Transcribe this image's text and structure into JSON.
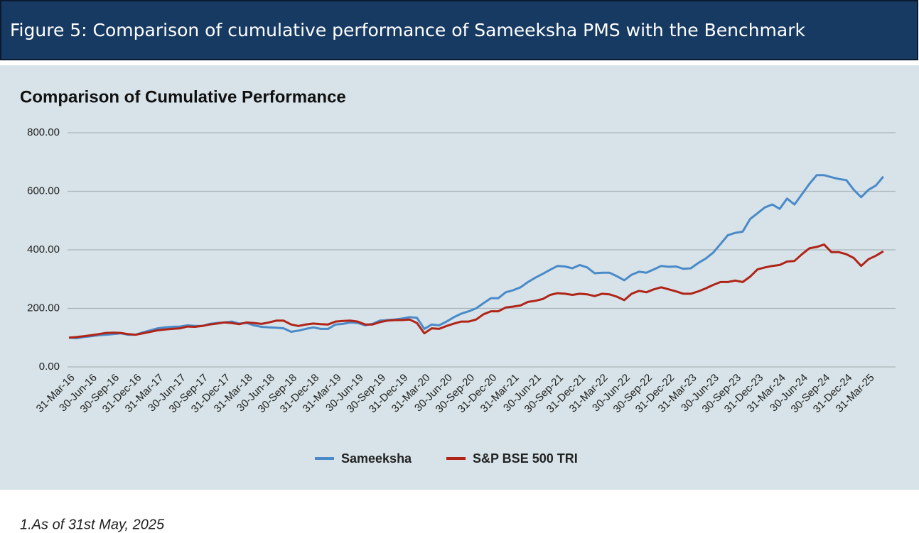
{
  "header": {
    "title": "Figure 5: Comparison of cumulative performance of Sameeksha PMS with the Benchmark"
  },
  "chart_data": {
    "type": "line",
    "title": "Comparison of  Cumulative Performance",
    "categories": [
      "31-Mar-16",
      null,
      null,
      "30-Jun-16",
      null,
      null,
      "30-Sep-16",
      null,
      null,
      "31-Dec-16",
      null,
      null,
      "31-Mar-17",
      null,
      null,
      "30-Jun-17",
      null,
      null,
      "30-Sep-17",
      null,
      null,
      "31-Dec-17",
      null,
      null,
      "31-Mar-18",
      null,
      null,
      "30-Jun-18",
      null,
      null,
      "30-Sep-18",
      null,
      null,
      "31-Dec-18",
      null,
      null,
      "31-Mar-19",
      null,
      null,
      "30-Jun-19",
      null,
      null,
      "30-Sep-19",
      null,
      null,
      "31-Dec-19",
      null,
      null,
      "31-Mar-20",
      null,
      null,
      "30-Jun-20",
      null,
      null,
      "30-Sep-20",
      null,
      null,
      "31-Dec-20",
      null,
      null,
      "31-Mar-21",
      null,
      null,
      "30-Jun-21",
      null,
      null,
      "30-Sep-21",
      null,
      null,
      "31-Dec-21",
      null,
      null,
      "31-Mar-22",
      null,
      null,
      "30-Jun-22",
      null,
      null,
      "30-Sep-22",
      null,
      null,
      "31-Dec-22",
      null,
      null,
      "31-Mar-23",
      null,
      null,
      "30-Jun-23",
      null,
      null,
      "30-Sep-23",
      null,
      null,
      "31-Dec-23",
      null,
      null,
      "31-Mar-24",
      null,
      null,
      "30-Jun-24",
      null,
      null,
      "30-Sep-24",
      null,
      null,
      "31-Dec-24",
      null,
      null,
      "31-Mar-25",
      null,
      null
    ],
    "series": [
      {
        "name": "Sameeksha",
        "color": "#4a8ac9",
        "values": [
          100,
          98,
          102,
          105,
          108,
          110,
          112,
          115,
          110,
          110,
          118,
          125,
          132,
          135,
          137,
          138,
          142,
          140,
          140,
          147,
          150,
          152,
          155,
          148,
          150,
          142,
          137,
          135,
          134,
          132,
          120,
          124,
          130,
          135,
          130,
          130,
          145,
          147,
          152,
          150,
          142,
          147,
          158,
          160,
          162,
          165,
          170,
          168,
          130,
          145,
          142,
          155,
          170,
          182,
          190,
          200,
          218,
          235,
          235,
          255,
          262,
          272,
          290,
          305,
          318,
          332,
          345,
          343,
          337,
          348,
          340,
          320,
          322,
          322,
          310,
          296,
          315,
          325,
          322,
          333,
          345,
          342,
          343,
          335,
          337,
          355,
          370,
          390,
          420,
          450,
          458,
          462,
          505,
          525,
          545,
          555,
          540,
          575,
          555,
          590,
          625,
          655,
          655,
          648,
          642,
          638,
          605,
          580,
          605,
          620,
          650
        ]
      },
      {
        "name": "S&P BSE 500 TRI",
        "color": "#b02418",
        "values": [
          100,
          102,
          105,
          108,
          112,
          116,
          117,
          116,
          112,
          110,
          115,
          120,
          125,
          128,
          130,
          132,
          138,
          137,
          140,
          145,
          148,
          152,
          150,
          146,
          152,
          150,
          147,
          152,
          158,
          158,
          145,
          140,
          145,
          148,
          146,
          145,
          155,
          157,
          158,
          155,
          145,
          145,
          153,
          158,
          160,
          160,
          162,
          150,
          115,
          132,
          130,
          140,
          148,
          155,
          155,
          162,
          180,
          190,
          190,
          203,
          206,
          210,
          222,
          226,
          232,
          246,
          252,
          250,
          246,
          250,
          248,
          242,
          250,
          248,
          240,
          228,
          250,
          260,
          255,
          265,
          272,
          265,
          258,
          250,
          250,
          258,
          268,
          280,
          290,
          290,
          295,
          290,
          308,
          333,
          340,
          345,
          348,
          360,
          362,
          385,
          405,
          410,
          418,
          392,
          392,
          385,
          372,
          345,
          368,
          380,
          395
        ]
      }
    ],
    "ylim": [
      0,
      800
    ],
    "yticks": [
      {
        "value": 0,
        "label": "0.00"
      },
      {
        "value": 200,
        "label": "200.00"
      },
      {
        "value": 400,
        "label": "400.00"
      },
      {
        "value": 600,
        "label": "600.00"
      },
      {
        "value": 800,
        "label": "800.00"
      }
    ],
    "grid": true,
    "legend": "bottom"
  },
  "footnote": "1.As of 31st May, 2025"
}
